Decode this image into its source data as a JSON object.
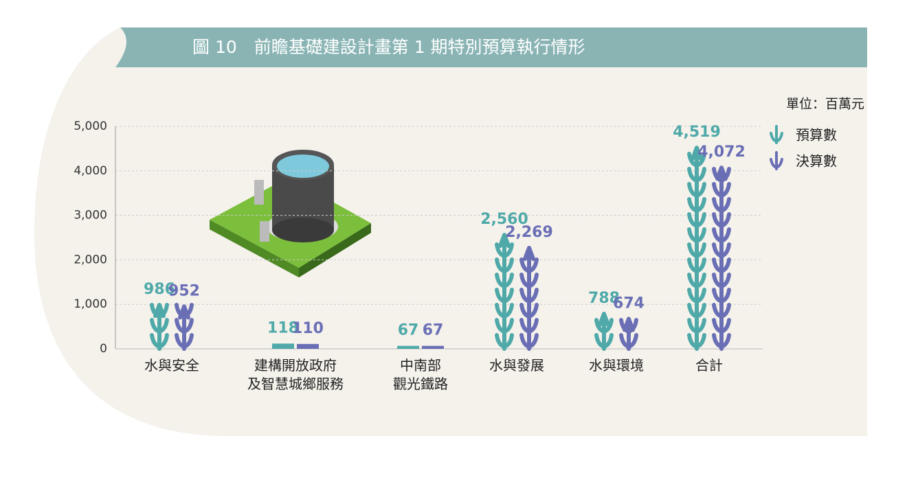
{
  "chart_data": {
    "type": "bar",
    "title": "圖 10　前瞻基礎建設計畫第 1 期特別預算執行情形",
    "unit": "單位：百萬元",
    "categories": [
      "水與安全",
      "建構開放政府\n及智慧城鄉服務",
      "中南部\n觀光鐵路",
      "水與發展",
      "水與環境",
      "合計"
    ],
    "series": [
      {
        "name": "預算數",
        "color": "#4fa9a9",
        "values": [
          986,
          118,
          67,
          2560,
          788,
          4519
        ],
        "value_labels": [
          "986",
          "118",
          "67",
          "2,560",
          "788",
          "4,519"
        ]
      },
      {
        "name": "決算數",
        "color": "#6a6fb5",
        "values": [
          952,
          110,
          67,
          2269,
          674,
          4072
        ],
        "value_labels": [
          "952",
          "110",
          "67",
          "2,269",
          "674",
          "4,072"
        ]
      }
    ],
    "ylim": [
      0,
      5000
    ],
    "yticks": [
      0,
      {
        "value": 1000,
        "label": "1,000"
      },
      {
        "value": 2000,
        "label": "2,000"
      },
      {
        "value": 3000,
        "label": "3,000"
      },
      {
        "value": 4000,
        "label": "4,000"
      },
      {
        "value": 5000,
        "label": "5,000"
      }
    ],
    "grid": true,
    "legend": "top-right"
  }
}
